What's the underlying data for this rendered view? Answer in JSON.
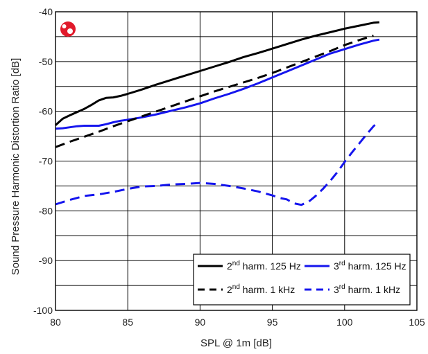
{
  "chart_data": {
    "type": "line",
    "xlabel": "SPL @ 1m [dB]",
    "ylabel": "Sound Pressure Harmonic Distortion Ratio [dB]",
    "xlim": [
      80,
      105
    ],
    "ylim": [
      -100,
      -40
    ],
    "x_ticks": [
      80,
      85,
      90,
      95,
      100,
      105
    ],
    "y_ticks": [
      -40,
      -50,
      -60,
      -70,
      -80,
      -90,
      -100
    ],
    "grid": true,
    "minor_y_grid_step": 5,
    "legend_position": "bottom-right",
    "logo_icon": "red-circle-logo",
    "series": [
      {
        "key": "h2_125",
        "label_pre": "2",
        "label_sup": "nd",
        "label_post": " harm. 125 Hz",
        "color": "#000000",
        "dashed": false,
        "x": [
          80,
          80.5,
          81,
          82,
          82.5,
          83,
          83.5,
          84,
          84.5,
          85,
          86,
          87,
          88,
          89,
          90,
          91,
          92,
          93,
          94,
          95,
          96,
          97,
          98,
          99,
          100,
          101,
          102,
          102.4
        ],
        "y": [
          -62.8,
          -61.5,
          -60.8,
          -59.5,
          -58.7,
          -57.8,
          -57.3,
          -57.2,
          -56.9,
          -56.5,
          -55.6,
          -54.6,
          -53.7,
          -52.8,
          -51.9,
          -51.0,
          -50.1,
          -49.1,
          -48.3,
          -47.4,
          -46.5,
          -45.6,
          -44.8,
          -44.1,
          -43.4,
          -42.8,
          -42.2,
          -42.1
        ]
      },
      {
        "key": "h3_125",
        "label_pre": "3",
        "label_sup": "rd",
        "label_post": " harm. 125 Hz",
        "color": "#1515ee",
        "dashed": false,
        "x": [
          80,
          80.5,
          81,
          81.5,
          82,
          82.5,
          83,
          83.5,
          84,
          84.5,
          85,
          86,
          87,
          88,
          89,
          90,
          91,
          92,
          93,
          94,
          95,
          96,
          97,
          98,
          99,
          100,
          101,
          102,
          102.4
        ],
        "y": [
          -63.5,
          -63.4,
          -63.2,
          -63.0,
          -62.9,
          -62.9,
          -62.9,
          -62.6,
          -62.2,
          -61.9,
          -61.7,
          -61.2,
          -60.6,
          -59.9,
          -59.2,
          -58.4,
          -57.4,
          -56.5,
          -55.5,
          -54.4,
          -53.2,
          -52.0,
          -50.8,
          -49.6,
          -48.4,
          -47.5,
          -46.6,
          -45.8,
          -45.6
        ]
      },
      {
        "key": "h2_1k",
        "label_pre": "2",
        "label_sup": "nd",
        "label_post": " harm. 1 kHz",
        "color": "#000000",
        "dashed": true,
        "x": [
          80,
          81,
          82,
          83,
          84,
          85,
          86,
          87,
          88,
          89,
          90,
          91,
          92,
          93,
          94,
          95,
          96,
          97,
          98,
          99,
          100,
          101,
          102
        ],
        "y": [
          -67.2,
          -66.1,
          -65.1,
          -64.1,
          -63.0,
          -62.0,
          -61.0,
          -60.0,
          -59.0,
          -58.0,
          -57.0,
          -56.0,
          -55.1,
          -54.2,
          -53.3,
          -52.3,
          -51.2,
          -50.1,
          -49.0,
          -47.9,
          -46.7,
          -45.7,
          -44.8
        ]
      },
      {
        "key": "h3_1k",
        "label_pre": "3",
        "label_sup": "rd",
        "label_post": " harm. 1 kHz",
        "color": "#1515ee",
        "dashed": true,
        "x": [
          80,
          81,
          82,
          83,
          84,
          85,
          86,
          87,
          88,
          89,
          90,
          91,
          92,
          93,
          94,
          94.5,
          95,
          95.5,
          96,
          96.5,
          97,
          97.5,
          98,
          98.5,
          99,
          99.5,
          100,
          100.5,
          101,
          101.5,
          102,
          102.3
        ],
        "y": [
          -78.7,
          -77.8,
          -77.0,
          -76.7,
          -76.2,
          -75.6,
          -75.1,
          -75.0,
          -74.7,
          -74.6,
          -74.4,
          -74.6,
          -75.0,
          -75.5,
          -76.1,
          -76.5,
          -76.9,
          -77.4,
          -77.7,
          -78.5,
          -78.8,
          -78.2,
          -77.0,
          -75.6,
          -74.0,
          -72.2,
          -70.2,
          -68.3,
          -66.5,
          -64.7,
          -63.0,
          -62.2
        ]
      }
    ]
  }
}
